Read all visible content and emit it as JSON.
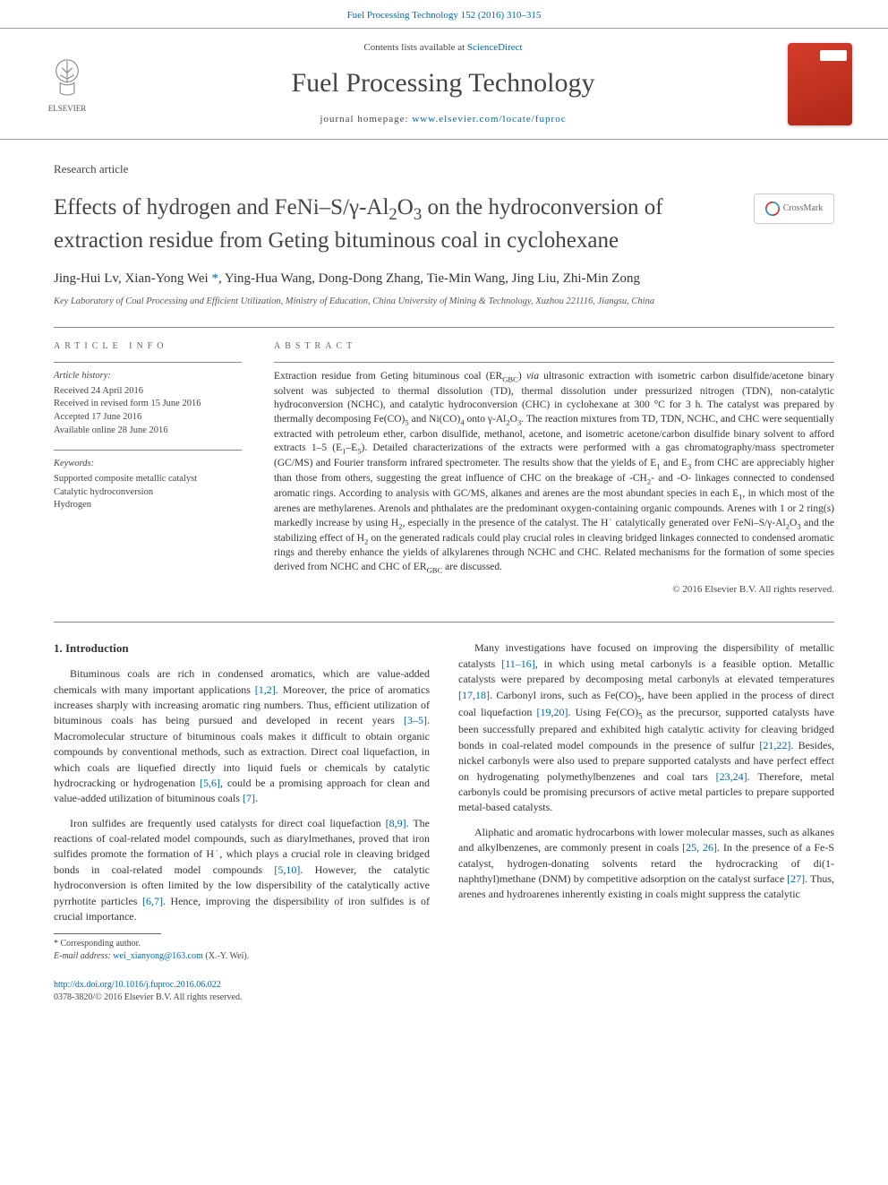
{
  "topbar": {
    "citation": "Fuel Processing Technology 152 (2016) 310–315"
  },
  "masthead": {
    "publisher_name": "ELSEVIER",
    "contents_text": "Contents lists available at ",
    "contents_link": "ScienceDirect",
    "journal_name": "Fuel Processing Technology",
    "homepage_label": "journal homepage: ",
    "homepage_url": "www.elsevier.com/locate/fuproc"
  },
  "article": {
    "type": "Research article",
    "title_html": "Effects of hydrogen and FeNi–S/γ-Al<sub>2</sub>O<sub>3</sub> on the hydroconversion of extraction residue from Geting bituminous coal in cyclohexane",
    "crossmark_label": "CrossMark",
    "authors_html": "Jing-Hui Lv, Xian-Yong Wei <a>*</a>, Ying-Hua Wang, Dong-Dong Zhang, Tie-Min Wang, Jing Liu, Zhi-Min Zong",
    "affiliation": "Key Laboratory of Coal Processing and Efficient Utilization, Ministry of Education, China University of Mining & Technology, Xuzhou 221116, Jiangsu, China"
  },
  "info": {
    "heading": "article info",
    "history_label": "Article history:",
    "history_lines": [
      "Received 24 April 2016",
      "Received in revised form 15 June 2016",
      "Accepted 17 June 2016",
      "Available online 28 June 2016"
    ],
    "keywords_label": "Keywords:",
    "keywords": [
      "Supported composite metallic catalyst",
      "Catalytic hydroconversion",
      "Hydrogen"
    ]
  },
  "abstract": {
    "heading": "abstract",
    "text_html": "Extraction residue from Geting bituminous coal (ER<sub>GBC</sub>) <i>via</i> ultrasonic extraction with isometric carbon disulfide/acetone binary solvent was subjected to thermal dissolution (TD), thermal dissolution under pressurized nitrogen (TDN), non-catalytic hydroconversion (NCHC), and catalytic hydroconversion (CHC) in cyclohexane at 300 °C for 3 h. The catalyst was prepared by thermally decomposing Fe(CO)<sub>5</sub> and Ni(CO)<sub>4</sub> onto γ-Al<sub>2</sub>O<sub>3</sub>. The reaction mixtures from TD, TDN, NCHC, and CHC were sequentially extracted with petroleum ether, carbon disulfide, methanol, acetone, and isometric acetone/carbon disulfide binary solvent to afford extracts 1–5 (E<sub>1</sub>–E<sub>5</sub>). Detailed characterizations of the extracts were performed with a gas chromatography/mass spectrometer (GC/MS) and Fourier transform infrared spectrometer. The results show that the yields of E<sub>1</sub> and E<sub>3</sub> from CHC are appreciably higher than those from others, suggesting the great influence of CHC on the breakage of -CH<sub>2</sub>- and -O- linkages connected to condensed aromatic rings. According to analysis with GC/MS, alkanes and arenes are the most abundant species in each E<sub>1</sub>, in which most of the arenes are methylarenes. Arenols and phthalates are the predominant oxygen-containing organic compounds. Arenes with 1 or 2 ring(s) markedly increase by using H<sub>2</sub>, especially in the presence of the catalyst. The H˙ catalytically generated over FeNi–S/γ-Al<sub>2</sub>O<sub>3</sub> and the stabilizing effect of H<sub>2</sub> on the generated radicals could play crucial roles in cleaving bridged linkages connected to condensed aromatic rings and thereby enhance the yields of alkylarenes through NCHC and CHC. Related mechanisms for the formation of some species derived from NCHC and CHC of ER<sub>GBC</sub> are discussed.",
    "copyright": "© 2016 Elsevier B.V. All rights reserved."
  },
  "body": {
    "section_heading": "1. Introduction",
    "paragraphs_html": [
      "Bituminous coals are rich in condensed aromatics, which are value-added chemicals with many important applications <a>[1,2]</a>. Moreover, the price of aromatics increases sharply with increasing aromatic ring numbers. Thus, efficient utilization of bituminous coals has being pursued and developed in recent years <a>[3–5]</a>. Macromolecular structure of bituminous coals makes it difficult to obtain organic compounds by conventional methods, such as extraction. Direct coal liquefaction, in which coals are liquefied directly into liquid fuels or chemicals by catalytic hydrocracking or hydrogenation <a>[5,6]</a>, could be a promising approach for clean and value-added utilization of bituminous coals <a>[7]</a>.",
      "Iron sulfides are frequently used catalysts for direct coal liquefaction <a>[8,9]</a>. The reactions of coal-related model compounds, such as diarylmethanes, proved that iron sulfides promote the formation of H˙, which plays a crucial role in cleaving bridged bonds in coal-related model compounds <a>[5,10]</a>. However, the catalytic hydroconversion is often limited by the low dispersibility of the catalytically active pyrrhotite particles <a>[6,7]</a>. Hence, improving the dispersibility of iron sulfides is of crucial importance.",
      "Many investigations have focused on improving the dispersibility of metallic catalysts <a>[11–16]</a>, in which using metal carbonyls is a feasible option. Metallic catalysts were prepared by decomposing metal carbonyls at elevated temperatures <a>[17,18]</a>. Carbonyl irons, such as Fe(CO)<sub>5</sub>, have been applied in the process of direct coal liquefaction <a>[19,20]</a>. Using Fe(CO)<sub>5</sub> as the precursor, supported catalysts have been successfully prepared and exhibited high catalytic activity for cleaving bridged bonds in coal-related model compounds in the presence of sulfur <a>[21,22]</a>. Besides, nickel carbonyls were also used to prepare supported catalysts and have perfect effect on hydrogenating polymethylbenzenes and coal tars <a>[23,24]</a>. Therefore, metal carbonyls could be promising precursors of active metal particles to prepare supported metal-based catalysts.",
      "Aliphatic and aromatic hydrocarbons with lower molecular masses, such as alkanes and alkylbenzenes, are commonly present in coals <a>[25, 26]</a>. In the presence of a Fe-S catalyst, hydrogen-donating solvents retard the hydrocracking of di(1-naphthyl)methane (DNM) by competitive adsorption on the catalyst surface <a>[27]</a>. Thus, arenes and hydroarenes inherently existing in coals might suppress the catalytic"
    ]
  },
  "footnote": {
    "corr_label": "* Corresponding author.",
    "email_label": "E-mail address:",
    "email": "wei_xianyong@163.com",
    "email_who": "(X.-Y. Wei)."
  },
  "footer": {
    "doi": "http://dx.doi.org/10.1016/j.fuproc.2016.06.022",
    "issn_line": "0378-3820/© 2016 Elsevier B.V. All rights reserved."
  },
  "colors": {
    "link": "#0066aa",
    "text": "#333333",
    "muted": "#666666",
    "rule": "#888888",
    "cover_a": "#d43c2a",
    "cover_b": "#b02818"
  }
}
